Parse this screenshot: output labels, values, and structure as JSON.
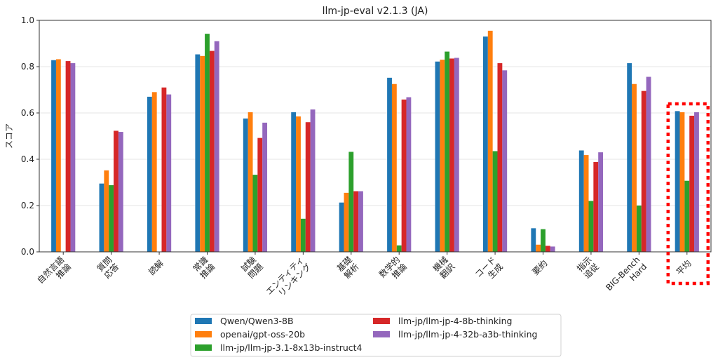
{
  "chart_data": {
    "type": "bar",
    "title": "llm-jp-eval v2.1.3 (JA)",
    "xlabel": "",
    "ylabel": "スコア",
    "ylim": [
      0,
      1.0
    ],
    "yticks": [
      "0.0",
      "0.2",
      "0.4",
      "0.6",
      "0.8",
      "1.0"
    ],
    "grid": true,
    "legend_placement": "bottom-center",
    "categories": [
      [
        "自然言語",
        "推論"
      ],
      [
        "質問",
        "応答"
      ],
      [
        "読解"
      ],
      [
        "常識",
        "推論"
      ],
      [
        "試験",
        "問題"
      ],
      [
        "エンティティ",
        "リンキング"
      ],
      [
        "基礎",
        "解析"
      ],
      [
        "数学的",
        "推論"
      ],
      [
        "機械",
        "翻訳"
      ],
      [
        "コード",
        "生成"
      ],
      [
        "要約"
      ],
      [
        "指示",
        "追従"
      ],
      [
        "BIG-Bench",
        "Hard"
      ],
      [
        "平均"
      ]
    ],
    "highlighted_category": "平均",
    "series": [
      {
        "name": "Qwen/Qwen3-8B",
        "color": "#1f77b4",
        "values": [
          0.828,
          0.295,
          0.67,
          0.853,
          0.576,
          0.603,
          0.213,
          0.752,
          0.822,
          0.93,
          0.102,
          0.438,
          0.815,
          0.608
        ]
      },
      {
        "name": "openai/gpt-oss-20b",
        "color": "#ff7f0e",
        "values": [
          0.832,
          0.352,
          0.69,
          0.846,
          0.603,
          0.585,
          0.255,
          0.725,
          0.83,
          0.955,
          0.031,
          0.418,
          0.725,
          0.603
        ]
      },
      {
        "name": "llm-jp/llm-jp-3.1-8x13b-instruct4",
        "color": "#2ca02c",
        "values": [
          0.0,
          0.288,
          0.0,
          0.942,
          0.333,
          0.143,
          0.432,
          0.028,
          0.865,
          0.435,
          0.098,
          0.22,
          0.2,
          0.307
        ]
      },
      {
        "name": "llm-jp/llm-jp-4-8b-thinking",
        "color": "#d62728",
        "values": [
          0.824,
          0.523,
          0.71,
          0.868,
          0.492,
          0.56,
          0.262,
          0.658,
          0.835,
          0.815,
          0.026,
          0.388,
          0.695,
          0.588
        ]
      },
      {
        "name": "llm-jp/llm-jp-4-32b-a3b-thinking",
        "color": "#9467bd",
        "values": [
          0.815,
          0.518,
          0.68,
          0.91,
          0.558,
          0.615,
          0.262,
          0.668,
          0.838,
          0.784,
          0.023,
          0.43,
          0.756,
          0.603
        ]
      }
    ]
  },
  "highlight_color": "#ff0000"
}
